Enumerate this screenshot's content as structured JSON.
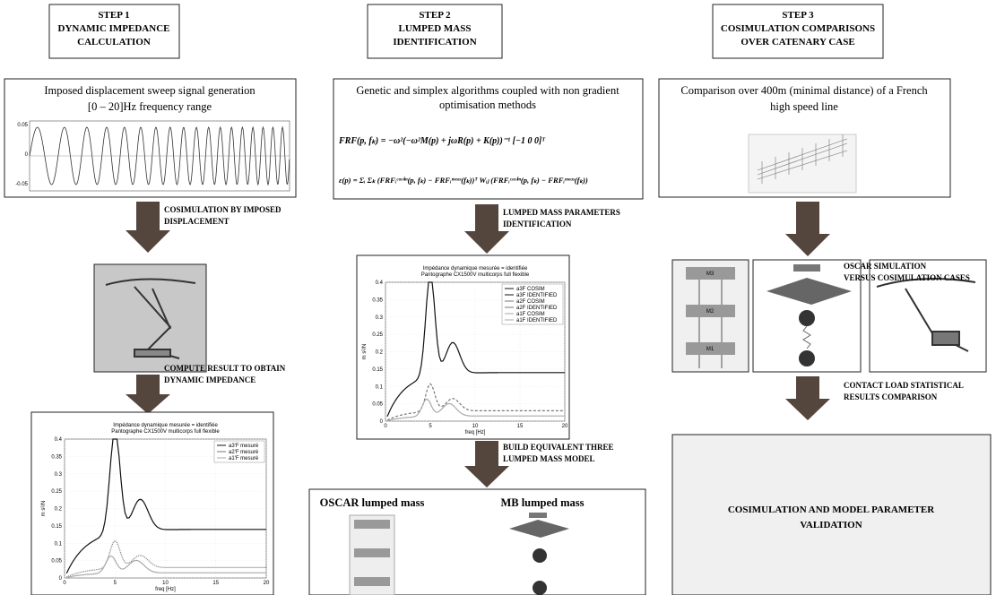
{
  "steps": [
    {
      "lines": [
        "STEP 1",
        "DYNAMIC IMPEDANCE",
        "CALCULATION"
      ]
    },
    {
      "lines": [
        "STEP 2",
        "LUMPED MASS",
        "IDENTIFICATION"
      ]
    },
    {
      "lines": [
        "STEP 3",
        "COSIMULATION COMPARISONS",
        "OVER CATENARY CASE"
      ]
    }
  ],
  "boxes": {
    "signal": {
      "lines": [
        "Imposed displacement sweep signal generation",
        "[0 – 20]Hz frequency range"
      ],
      "yticks": [
        "0.05",
        "0",
        "-0.05"
      ]
    },
    "algorithms": {
      "lines": [
        "Genetic and simplex algorithms coupled with non gradient",
        "optimisation methods"
      ],
      "formulas": [
        "FRF(p, fₖ) = −ω²(−ω²M(p) + jωR(p) + K(p))⁻¹ [−1 0 0]ᵀ",
        "ε(p) = Σᵢ Σₖ (FRFᵢᶜᵒˢⁱᵐ(p, fₖ) − FRFᵢᵐᵉᵃˢ(fₖ))ᵀ Wᵢⱼ (FRFᵢᶜᵒˢⁱᵐ(p, fₖ) − FRFᵢᵐᵉᵃˢ(fₖ))"
      ]
    },
    "comparison": {
      "lines": [
        "Comparison over 400m (minimal distance) of a French",
        "high speed line"
      ]
    }
  },
  "arrows": [
    {
      "lines": [
        "COSIMULATION BY IMPOSED",
        "DISPLACEMENT"
      ]
    },
    {
      "lines": [
        "COMPUTE RESULT TO OBTAIN",
        "DYNAMIC IMPEDANCE"
      ]
    },
    {
      "lines": [
        "LUMPED MASS PARAMETERS",
        "IDENTIFICATION"
      ]
    },
    {
      "lines": [
        "BUILD EQUIVALENT THREE",
        "LUMPED MASS MODEL"
      ]
    },
    {
      "lines": [
        "OSCAR SIMULATION",
        "VERSUS COSIMULATION CASES"
      ]
    },
    {
      "lines": [
        "CONTACT LOAD STATISTICAL",
        "RESULTS COMPARISON"
      ]
    }
  ],
  "charts": [
    {
      "title_lines": [
        "Impédance dynamique mesurée = identifiée",
        "Pantographe CX1500V multicorps full flexible"
      ],
      "legend": [
        "a3'F mesuré",
        "a2'F mesuré",
        "a1'F mesuré"
      ],
      "xlabel": "freq [Hz]",
      "ylabel": "m s²/N",
      "yticks": [
        "0.4",
        "0.35",
        "0.3",
        "0.25",
        "0.2",
        "0.15",
        "0.1",
        "0.05",
        "0"
      ],
      "xticks": [
        "0",
        "5",
        "10",
        "15",
        "20"
      ]
    },
    {
      "title_lines": [
        "Impédance dynamique mesurée = identifiée",
        "Pantographe CX1500V multicorps full flexible"
      ],
      "legend": [
        "a3F COSIM",
        "a3F IDENTIFIED",
        "a2F COSIM",
        "a2F IDENTIFIED",
        "a1F COSIM",
        "a1F IDENTIFIED"
      ],
      "xlabel": "freq [Hz]",
      "ylabel": "m s²/N",
      "yticks": [
        "0.4",
        "0.35",
        "0.3",
        "0.25",
        "0.2",
        "0.15",
        "0.1",
        "0.05",
        "0"
      ],
      "xticks": [
        "0",
        "5",
        "10",
        "15",
        "20"
      ]
    }
  ],
  "lumped_mass": {
    "oscar_title": "OSCAR lumped mass",
    "mb_title": "MB lumped mass",
    "mass_labels": [
      "M3",
      "M2",
      "M1"
    ]
  },
  "final": {
    "lines": [
      "COSIMULATION AND MODEL PARAMETER",
      "VALIDATION"
    ]
  }
}
